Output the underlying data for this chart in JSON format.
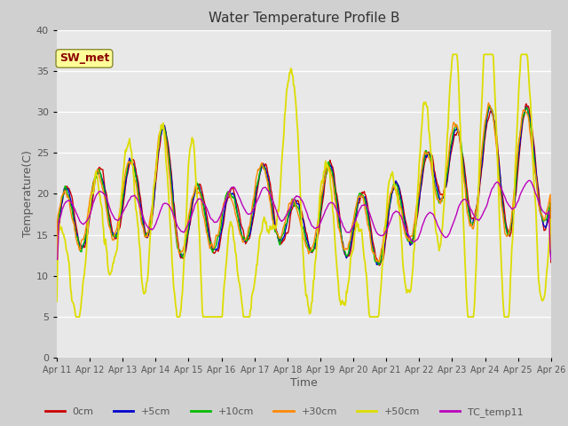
{
  "title": "Water Temperature Profile B",
  "xlabel": "Time",
  "ylabel": "Temperature(C)",
  "ylim": [
    0,
    40
  ],
  "annotation": "SW_met",
  "legend_labels": [
    "0cm",
    "+5cm",
    "+10cm",
    "+30cm",
    "+50cm",
    "TC_temp11"
  ],
  "line_colors": [
    "#cc0000",
    "#0000cc",
    "#00bb00",
    "#ff8800",
    "#dddd00",
    "#bb00bb"
  ],
  "fig_bg_color": "#d0d0d0",
  "plot_bg_color": "#e8e8e8",
  "tick_color": "#555555",
  "title_color": "#333333",
  "x_tick_labels": [
    "Apr 11",
    "Apr 12",
    "Apr 13",
    "Apr 14",
    "Apr 15",
    "Apr 16",
    "Apr 17",
    "Apr 18",
    "Apr 19",
    "Apr 20",
    "Apr 21",
    "Apr 22",
    "Apr 23",
    "Apr 24",
    "Apr 25",
    "Apr 26"
  ],
  "y_ticks": [
    0,
    5,
    10,
    15,
    20,
    25,
    30,
    35,
    40
  ],
  "n_points": 721,
  "seed": 12345
}
